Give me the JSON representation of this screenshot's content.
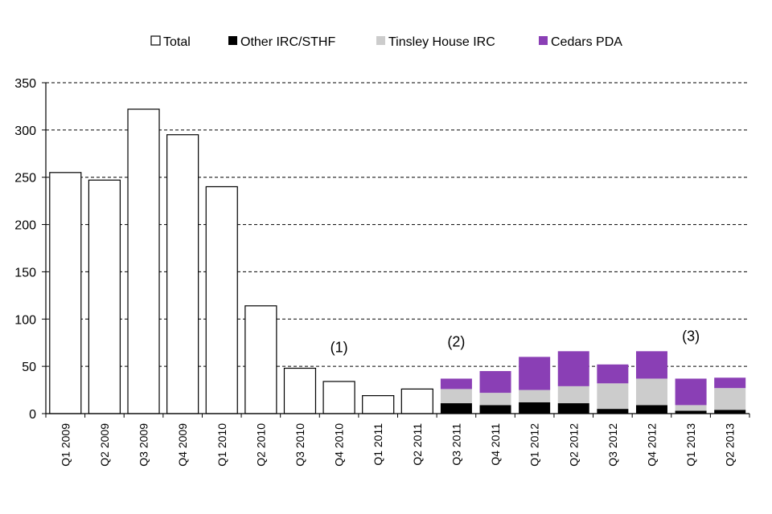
{
  "chart_data": {
    "type": "bar",
    "stacked": true,
    "title": "",
    "xlabel": "",
    "ylabel": "",
    "ylim": [
      0,
      350
    ],
    "yticks": [
      0,
      50,
      100,
      150,
      200,
      250,
      300,
      350
    ],
    "grid": true,
    "legend_position": "top",
    "categories": [
      "Q1 2009",
      "Q2 2009",
      "Q3 2009",
      "Q4 2009",
      "Q1 2010",
      "Q2 2010",
      "Q3 2010",
      "Q4 2010",
      "Q1 2011",
      "Q2 2011",
      "Q3 2011",
      "Q4 2011",
      "Q1 2012",
      "Q2 2012",
      "Q3 2012",
      "Q4 2012",
      "Q1 2013",
      "Q2 2013"
    ],
    "series": [
      {
        "name": "Total",
        "color": "#ffffff",
        "values": [
          255,
          247,
          322,
          295,
          240,
          114,
          48,
          34,
          19,
          26,
          null,
          null,
          null,
          null,
          null,
          null,
          null,
          null
        ]
      },
      {
        "name": "Other IRC/STHF",
        "color": "#000000",
        "values": [
          null,
          null,
          null,
          null,
          null,
          null,
          null,
          null,
          null,
          null,
          11,
          9,
          12,
          11,
          5,
          9,
          3,
          4
        ]
      },
      {
        "name": "Tinsley House IRC",
        "color": "#cccccc",
        "values": [
          null,
          null,
          null,
          null,
          null,
          null,
          null,
          null,
          null,
          null,
          15,
          13,
          13,
          18,
          27,
          28,
          6,
          23
        ]
      },
      {
        "name": "Cedars PDA",
        "color": "#8a3fb5",
        "values": [
          null,
          null,
          null,
          null,
          null,
          null,
          null,
          null,
          null,
          null,
          11,
          23,
          35,
          37,
          20,
          29,
          28,
          11
        ]
      }
    ],
    "annotations": [
      {
        "text": "(1)",
        "category": "Q4 2010",
        "y": 65
      },
      {
        "text": "(2)",
        "category": "Q3 2011",
        "y": 71
      },
      {
        "text": "(3)",
        "category": "Q1 2013",
        "y": 77
      }
    ]
  }
}
